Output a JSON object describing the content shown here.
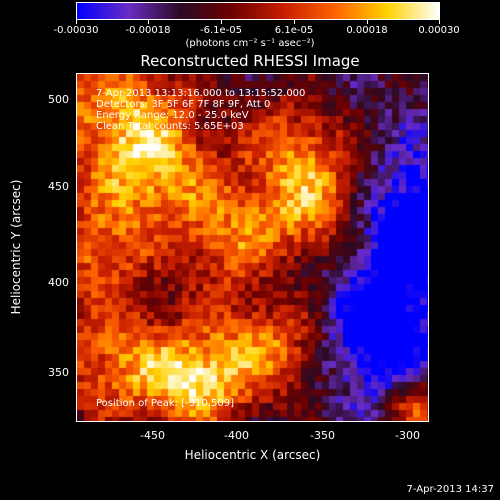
{
  "colorbar": {
    "stops": [
      "#0000ff",
      "#6a2cc2",
      "#2a0a24",
      "#6e0000",
      "#c81e00",
      "#ff6400",
      "#ffd200",
      "#ffffff"
    ],
    "tick_labels": [
      "-0.00030",
      "-0.00018",
      "-6.1e-05",
      "6.1e-05",
      "0.00018",
      "0.00030"
    ],
    "units": "(photons cm⁻² s⁻¹ asec⁻²)"
  },
  "title": "Reconstructed RHESSI Image",
  "annotations": {
    "time_range": "7-Apr-2013 13:13:16.000 to 13:15:52.000",
    "detectors": "Detectors: 3F 5F 6F 7F 8F 9F, Att 0",
    "energy_range": "Energy Range: 12.0 - 25.0 keV",
    "clean": "Clean      Total counts: 5.65E+03",
    "peak": "Position of Peak:  [-310,509]"
  },
  "x_axis": {
    "label": "Heliocentric X (arcsec)",
    "ticks": [
      "-450",
      "-400",
      "-350",
      "-300"
    ]
  },
  "y_axis": {
    "label": "Heliocentric Y (arcsec)",
    "ticks": [
      "500",
      "450",
      "400",
      "350"
    ]
  },
  "timestamp": "7-Apr-2013 14:37"
}
